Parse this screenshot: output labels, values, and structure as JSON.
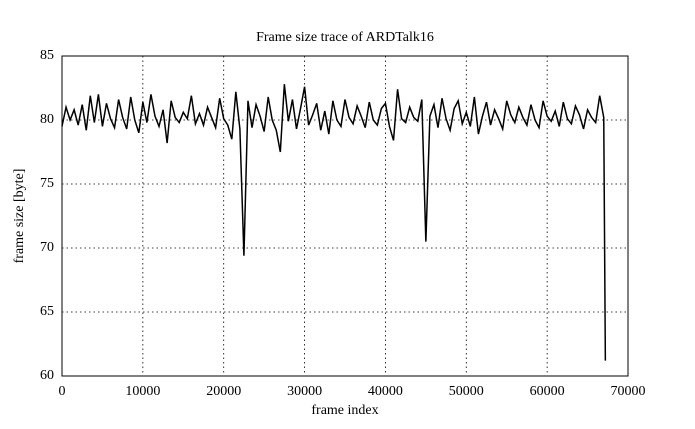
{
  "chart_data": {
    "type": "line",
    "title": "Frame size trace of ARDTalk16",
    "x_label": "frame index",
    "y_label": "frame size [byte]",
    "x": [
      0,
      500,
      1000,
      1500,
      2000,
      2500,
      3000,
      3500,
      4000,
      4500,
      5000,
      5500,
      6000,
      6500,
      7000,
      7500,
      8000,
      8500,
      9000,
      9500,
      10000,
      10500,
      11000,
      11500,
      12000,
      12500,
      13000,
      13500,
      14000,
      14500,
      15000,
      15500,
      16000,
      16500,
      17000,
      17500,
      18000,
      18500,
      19000,
      19500,
      20000,
      20500,
      21000,
      21500,
      22000,
      22500,
      23000,
      23500,
      24000,
      24500,
      25000,
      25500,
      26000,
      26500,
      27000,
      27500,
      28000,
      28500,
      29000,
      29500,
      30000,
      30500,
      31000,
      31500,
      32000,
      32500,
      33000,
      33500,
      34000,
      34500,
      35000,
      35500,
      36000,
      36500,
      37000,
      37500,
      38000,
      38500,
      39000,
      39500,
      40000,
      40500,
      41000,
      41500,
      42000,
      42500,
      43000,
      43500,
      44000,
      44500,
      45000,
      45500,
      46000,
      46500,
      47000,
      47500,
      48000,
      48500,
      49000,
      49500,
      50000,
      50500,
      51000,
      51500,
      52000,
      52500,
      53000,
      53500,
      54000,
      54500,
      55000,
      55500,
      56000,
      56500,
      57000,
      57500,
      58000,
      58500,
      59000,
      59500,
      60000,
      60500,
      61000,
      61500,
      62000,
      62500,
      63000,
      63500,
      64000,
      64500,
      65000,
      65500,
      66000,
      66500,
      67000,
      67200
    ],
    "series": [
      {
        "name": "frame size",
        "color": "#000000",
        "values": [
          79.5,
          81,
          80,
          80.8,
          79.6,
          81.2,
          79.2,
          81.9,
          79.8,
          82,
          79.5,
          81.3,
          80.1,
          79.4,
          81.6,
          80.2,
          79.3,
          81.8,
          80,
          79,
          81.4,
          79.8,
          82,
          80.3,
          79.5,
          80.8,
          78.2,
          81.5,
          80.2,
          79.8,
          80.6,
          80.1,
          81.9,
          79.7,
          80.5,
          79.6,
          81,
          80.2,
          79.4,
          81.7,
          80.1,
          79.6,
          78.5,
          82.2,
          79.3,
          69.4,
          81.5,
          79.4,
          81.2,
          80.3,
          79.1,
          81.8,
          80,
          79.2,
          77.5,
          82.8,
          79.9,
          81.6,
          79.3,
          80.9,
          82.6,
          79.6,
          80.4,
          81.3,
          79.2,
          80.7,
          78.9,
          81.5,
          80,
          79.5,
          81.6,
          80.2,
          79.7,
          81.1,
          80.3,
          79.4,
          81.4,
          80,
          79.6,
          80.9,
          81.3,
          79.5,
          78.4,
          82.4,
          80.1,
          79.8,
          81,
          80.2,
          79.9,
          81.6,
          70.5,
          80.3,
          81.2,
          79.4,
          81.7,
          80.1,
          79.2,
          80.9,
          81.5,
          79.7,
          80.6,
          79.5,
          81.8,
          78.9,
          80.3,
          81.4,
          79.6,
          80.8,
          80.1,
          79.3,
          81.5,
          80.4,
          79.8,
          81,
          80.2,
          79.6,
          81.2,
          80,
          79.4,
          81.5,
          80.3,
          79.9,
          80.7,
          79.5,
          81.4,
          80.1,
          79.7,
          81.1,
          80.4,
          79.3,
          80.8,
          80.2,
          79.8,
          81.9,
          80.2,
          61.2
        ]
      }
    ],
    "xlim": [
      0,
      70000
    ],
    "xticks": [
      0,
      10000,
      20000,
      30000,
      40000,
      50000,
      60000,
      70000
    ],
    "ylim": [
      60,
      85
    ],
    "yticks": [
      60,
      65,
      70,
      75,
      80,
      85
    ],
    "grid": true
  }
}
